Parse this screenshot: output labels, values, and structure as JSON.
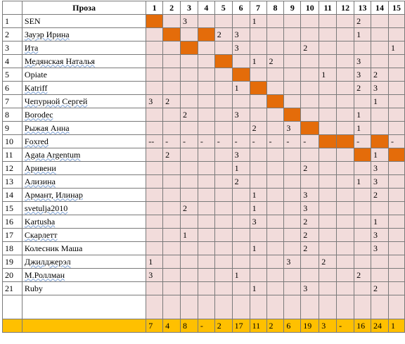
{
  "header": {
    "title": "Проза",
    "columns": [
      "1",
      "2",
      "3",
      "4",
      "5",
      "6",
      "7",
      "8",
      "9",
      "10",
      "11",
      "12",
      "13",
      "14",
      "15"
    ]
  },
  "accent_colors": {
    "diagonal": "#e46c0a",
    "cell": "#f2dcdb",
    "totals": "#ffc000"
  },
  "rows": [
    {
      "num": "1",
      "name": "SEN",
      "ul": false,
      "cells": [
        "",
        "",
        "3",
        "",
        "",
        "",
        "1",
        "",
        "",
        "",
        "",
        "",
        "2",
        "",
        ""
      ],
      "hl": [
        0
      ]
    },
    {
      "num": "2",
      "name": "Зауэр Ирина",
      "ul": true,
      "cells": [
        "",
        "",
        "",
        "",
        "2",
        "3",
        "",
        "",
        "",
        "",
        "",
        "",
        "1",
        "",
        ""
      ],
      "hl": [
        1,
        3
      ]
    },
    {
      "num": "3",
      "name": "Ита",
      "ul": true,
      "cells": [
        "",
        "",
        "",
        "",
        "",
        "3",
        "",
        "",
        "",
        "2",
        "",
        "",
        "",
        "",
        "1"
      ],
      "hl": [
        2
      ]
    },
    {
      "num": "4",
      "name": "Медянская Наталья",
      "ul": true,
      "cells": [
        "",
        "",
        "",
        "",
        "",
        "",
        "1",
        "2",
        "",
        "",
        "",
        "",
        "3",
        "",
        ""
      ],
      "hl": [
        4
      ]
    },
    {
      "num": "5",
      "name": "Opiate",
      "ul": false,
      "cells": [
        "",
        "",
        "",
        "",
        "",
        "",
        "",
        "",
        "",
        "",
        "1",
        "",
        "3",
        "2",
        ""
      ],
      "hl": [
        5
      ]
    },
    {
      "num": "6",
      "name": "Katriff",
      "ul": true,
      "cells": [
        "",
        "",
        "",
        "",
        "",
        "1",
        "",
        "",
        "",
        "",
        "",
        "",
        "2",
        "3",
        ""
      ],
      "hl": [
        6
      ]
    },
    {
      "num": "7",
      "name": "Чепурной Сергей",
      "ul": true,
      "cells": [
        "3",
        "2",
        "",
        "",
        "",
        "",
        "",
        "",
        "",
        "",
        "",
        "",
        "",
        "1",
        ""
      ],
      "hl": [
        7
      ]
    },
    {
      "num": "8",
      "name": "Borodec",
      "ul": true,
      "cells": [
        "",
        "",
        "2",
        "",
        "",
        "3",
        "",
        "",
        "",
        "",
        "",
        "",
        "1",
        "",
        ""
      ],
      "hl": [
        8
      ]
    },
    {
      "num": "9",
      "name": "Рыжая Анна",
      "ul": true,
      "cells": [
        "",
        "",
        "",
        "",
        "",
        "",
        "2",
        "",
        "3",
        "",
        "",
        "",
        "1",
        "",
        ""
      ],
      "hl": [
        9
      ]
    },
    {
      "num": "10",
      "name": "Foxred",
      "ul": true,
      "cells": [
        "--",
        "-",
        "-",
        "-",
        "-",
        "-",
        "-",
        "-",
        "-",
        "-",
        "",
        "",
        "-",
        "",
        "-"
      ],
      "hl": [
        10,
        11,
        13
      ]
    },
    {
      "num": "11",
      "name": "Agata Argentum",
      "ul": true,
      "cells": [
        "",
        "2",
        "",
        "",
        "",
        "3",
        "",
        "",
        "",
        "",
        "",
        "",
        "",
        "1",
        ""
      ],
      "hl": [
        12,
        14
      ]
    },
    {
      "num": "12",
      "name": "Аривени",
      "ul": true,
      "cells": [
        "",
        "",
        "",
        "",
        "",
        "1",
        "",
        "",
        "",
        "2",
        "",
        "",
        "",
        "3",
        ""
      ],
      "hl": []
    },
    {
      "num": "13",
      "name": "Ализина",
      "ul": true,
      "cells": [
        "",
        "",
        "",
        "",
        "",
        "2",
        "",
        "",
        "",
        "",
        "",
        "",
        "1",
        "3",
        ""
      ],
      "hl": []
    },
    {
      "num": "14",
      "name": "Армант, Илинар",
      "ul": true,
      "cells": [
        "",
        "",
        "",
        "",
        "",
        "",
        "1",
        "",
        "",
        "3",
        "",
        "",
        "",
        "2",
        ""
      ],
      "hl": []
    },
    {
      "num": "15",
      "name": "svetulja2010",
      "ul": true,
      "cells": [
        "",
        "",
        "2",
        "",
        "",
        "",
        "1",
        "",
        "",
        "3",
        "",
        "",
        "",
        "",
        ""
      ],
      "hl": []
    },
    {
      "num": "16",
      "name": "Kartusha",
      "ul": true,
      "cells": [
        "",
        "",
        "",
        "",
        "",
        "",
        "3",
        "",
        "",
        "2",
        "",
        "",
        "",
        "1",
        ""
      ],
      "hl": []
    },
    {
      "num": "17",
      "name": "Скарлетт",
      "ul": true,
      "cells": [
        "",
        "",
        "1",
        "",
        "",
        "",
        "",
        "",
        "",
        "2",
        "",
        "",
        "",
        "3",
        ""
      ],
      "hl": []
    },
    {
      "num": "18",
      "name": "Колесник Маша",
      "ul": false,
      "cells": [
        "",
        "",
        "",
        "",
        "",
        "",
        "1",
        "",
        "",
        "2",
        "",
        "",
        "",
        "3",
        ""
      ],
      "hl": []
    },
    {
      "num": "19",
      "name": "Джилджерэл",
      "ul": true,
      "cells": [
        "1",
        "",
        "",
        "",
        "",
        "",
        "",
        "",
        "3",
        "",
        "2",
        "",
        "",
        "",
        ""
      ],
      "hl": []
    },
    {
      "num": "20",
      "name": "М.Роллман",
      "ul": true,
      "cells": [
        "3",
        "",
        "",
        "",
        "",
        "1",
        "",
        "",
        "",
        "",
        "",
        "",
        "2",
        "",
        ""
      ],
      "hl": []
    },
    {
      "num": "21",
      "name": "Ruby",
      "ul": false,
      "cells": [
        "",
        "",
        "",
        "",
        "",
        "",
        "1",
        "",
        "",
        "3",
        "",
        "",
        "",
        "2",
        ""
      ],
      "hl": []
    }
  ],
  "totals": [
    "7",
    "4",
    "8",
    "-",
    "2",
    "17",
    "11",
    "2",
    "6",
    "19",
    "3",
    "-",
    "16",
    "24",
    "1"
  ]
}
